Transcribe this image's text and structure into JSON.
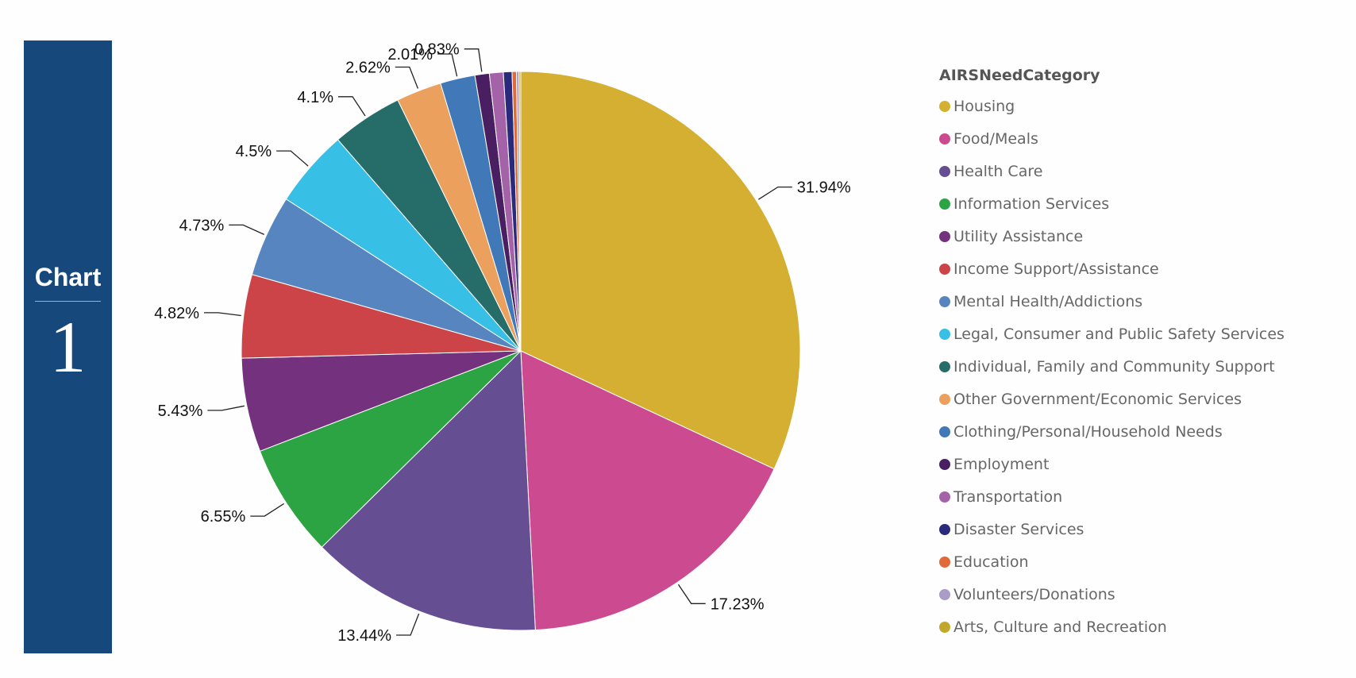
{
  "side_panel": {
    "label": "Chart",
    "number": "1"
  },
  "chart_data": {
    "type": "pie",
    "legend_title": "AIRSNeedCategory",
    "legend_position": "right",
    "slices": [
      {
        "name": "Housing",
        "value": 31.94,
        "label": "31.94%",
        "color": "#d4af31"
      },
      {
        "name": "Food/Meals",
        "value": 17.23,
        "label": "17.23%",
        "color": "#cc4a8f"
      },
      {
        "name": "Health Care",
        "value": 13.44,
        "label": "13.44%",
        "color": "#654f92"
      },
      {
        "name": "Information Services",
        "value": 6.55,
        "label": "6.55%",
        "color": "#2ca444"
      },
      {
        "name": "Utility Assistance",
        "value": 5.43,
        "label": "5.43%",
        "color": "#74317d"
      },
      {
        "name": "Income Support/Assistance",
        "value": 4.82,
        "label": "4.82%",
        "color": "#cc4448"
      },
      {
        "name": "Mental Health/Addictions",
        "value": 4.73,
        "label": "4.73%",
        "color": "#5785bf"
      },
      {
        "name": "Legal, Consumer and Public Safety Services",
        "value": 4.5,
        "label": "4.5%",
        "color": "#37bfe6"
      },
      {
        "name": "Individual, Family and Community Support",
        "value": 4.1,
        "label": "4.1%",
        "color": "#266c69"
      },
      {
        "name": "Other Government/Economic Services",
        "value": 2.62,
        "label": "2.62%",
        "color": "#eba05d"
      },
      {
        "name": "Clothing/Personal/Household Needs",
        "value": 2.01,
        "label": "2.01%",
        "color": "#4078b8"
      },
      {
        "name": "Employment",
        "value": 0.83,
        "label": "0.83%",
        "color": "#4a1f62"
      },
      {
        "name": "Transportation",
        "value": 0.8,
        "label": "",
        "color": "#a462a9"
      },
      {
        "name": "Disaster Services",
        "value": 0.5,
        "label": "",
        "color": "#2a2a7c"
      },
      {
        "name": "Education",
        "value": 0.25,
        "label": "",
        "color": "#e06a38"
      },
      {
        "name": "Volunteers/Donations",
        "value": 0.15,
        "label": "",
        "color": "#a99cc6"
      },
      {
        "name": "Arts, Culture and Recreation",
        "value": 0.1,
        "label": "",
        "color": "#c1a72b"
      }
    ]
  }
}
